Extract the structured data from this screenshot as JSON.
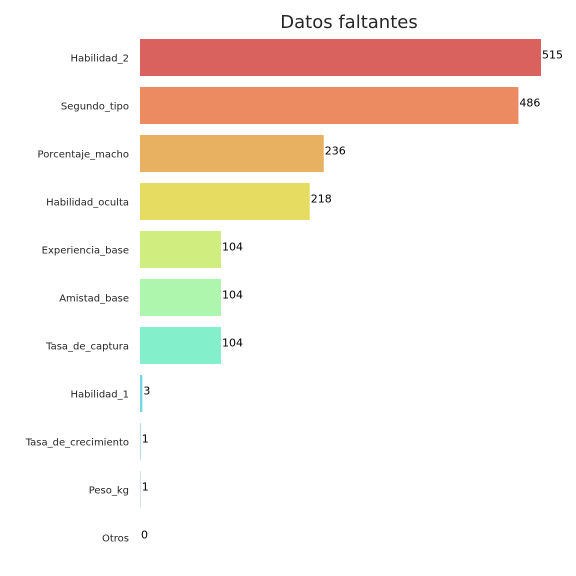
{
  "chart_data": {
    "type": "bar",
    "orientation": "horizontal",
    "title": "Datos faltantes",
    "xlabel": "",
    "ylabel": "",
    "xlim": [
      0,
      515
    ],
    "grid": false,
    "categories": [
      "Habilidad_2",
      "Segundo_tipo",
      "Porcentaje_macho",
      "Habilidad_oculta",
      "Experiencia_base",
      "Amistad_base",
      "Tasa_de_captura",
      "Habilidad_1",
      "Tasa_de_crecimiento",
      "Peso_kg",
      "Otros"
    ],
    "values": [
      515,
      486,
      236,
      218,
      104,
      104,
      104,
      3,
      1,
      1,
      0
    ],
    "colors": [
      "#d9625f",
      "#ec8a62",
      "#e8b162",
      "#e7dc62",
      "#cfee7f",
      "#aef5ad",
      "#84f0cb",
      "#72d7df",
      "#a9d2ea",
      "#c9d9ee",
      "#dde4f1"
    ]
  }
}
